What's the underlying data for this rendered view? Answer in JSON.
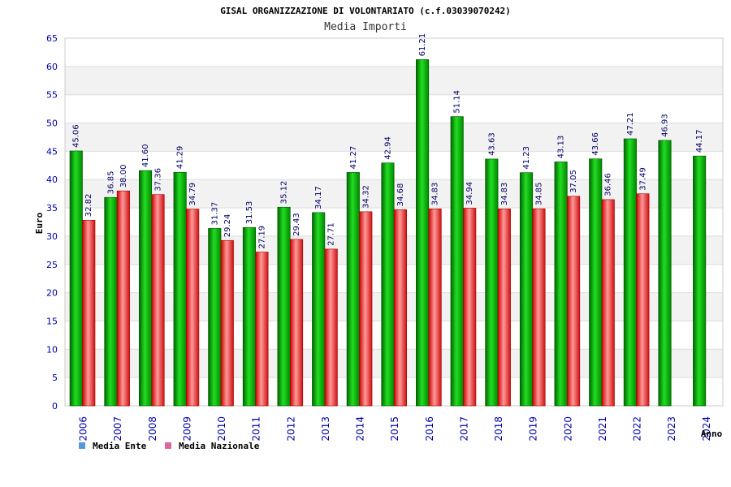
{
  "chart_data": {
    "type": "bar",
    "title": "GISAL ORGANIZZAZIONE DI VOLONTARIATO (c.f.03039070242)",
    "subtitle": "Media Importi",
    "ylabel": "Euro",
    "xlabel": "Anno",
    "ylim": [
      0,
      65
    ],
    "yticks": [
      0,
      5,
      10,
      15,
      20,
      25,
      30,
      35,
      40,
      45,
      50,
      55,
      60,
      65
    ],
    "grid": true,
    "legend_position": "bottom-left",
    "categories": [
      "2006",
      "2007",
      "2008",
      "2009",
      "2010",
      "2011",
      "2012",
      "2013",
      "2014",
      "2015",
      "2016",
      "2017",
      "2018",
      "2019",
      "2020",
      "2021",
      "2022",
      "2023",
      "2024"
    ],
    "series": [
      {
        "name": "Media Ente",
        "color": "#00aa00",
        "legend_color": "#5599dd",
        "values": [
          45.06,
          36.85,
          41.6,
          41.29,
          31.37,
          31.53,
          35.12,
          34.17,
          41.27,
          42.94,
          61.21,
          51.14,
          43.63,
          41.23,
          43.13,
          43.66,
          47.21,
          46.93,
          44.17
        ],
        "labels": [
          "45.06",
          "36.85",
          "41.60",
          "41.29",
          "31.37",
          "31.53",
          "35.12",
          "34.17",
          "41.27",
          "42.94",
          "61.21",
          "51.14",
          "43.63",
          "41.23",
          "43.13",
          "43.66",
          "47.21",
          "46.93",
          "44.17"
        ]
      },
      {
        "name": "Media Nazionale",
        "color": "#dd2222",
        "legend_color": "#dd6699",
        "values": [
          32.82,
          38.0,
          37.36,
          34.79,
          29.24,
          27.19,
          29.43,
          27.71,
          34.32,
          34.68,
          34.83,
          34.94,
          34.83,
          34.85,
          37.05,
          36.46,
          37.49,
          null,
          null
        ],
        "labels": [
          "32.82",
          "38.00",
          "37.36",
          "34.79",
          "29.24",
          "27.19",
          "29.43",
          "27.71",
          "34.32",
          "34.68",
          "34.83",
          "34.94",
          "34.83",
          "34.85",
          "37.05",
          "36.46",
          "37.49",
          "",
          ""
        ]
      }
    ]
  }
}
